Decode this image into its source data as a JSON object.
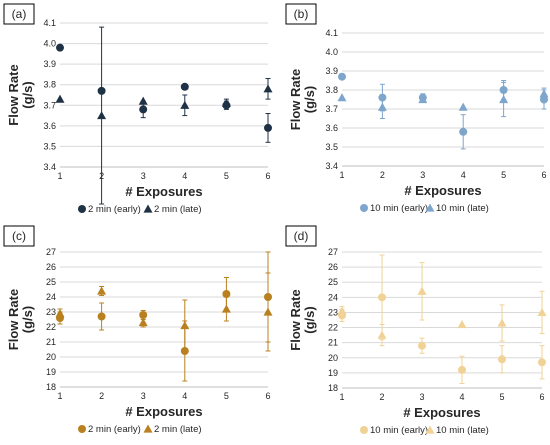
{
  "chart_data": [
    {
      "panel_label": "(a)",
      "type": "scatter",
      "xlabel": "# Exposures",
      "ylabel": "Flow Rate (g/s)",
      "ylabel_lines": [
        "Flow Rate",
        "(g/s)"
      ],
      "x": [
        1,
        2,
        3,
        4,
        5,
        6
      ],
      "xticks": [
        "1",
        "2",
        "3",
        "4",
        "5",
        "6"
      ],
      "ylim": [
        3.4,
        4.1
      ],
      "yticks": [
        "3.4",
        "3.5",
        "3.6",
        "3.7",
        "3.8",
        "3.9",
        "4.0",
        "4.1"
      ],
      "grid": "horizontal",
      "legend": "bottom",
      "series": [
        {
          "name": "2 min (early)",
          "marker": "circle",
          "color": "#1f3245",
          "values": [
            3.98,
            3.77,
            3.68,
            3.79,
            3.7,
            3.59
          ],
          "err": [
            0.0,
            0.0,
            0.04,
            0.0,
            0.02,
            0.07
          ]
        },
        {
          "name": "2 min (late)",
          "marker": "triangle",
          "color": "#1f3245",
          "values": [
            3.73,
            3.65,
            3.72,
            3.7,
            3.71,
            3.78
          ],
          "err": [
            0.0,
            0.43,
            0.0,
            0.05,
            0.02,
            0.05
          ]
        }
      ]
    },
    {
      "panel_label": "(b)",
      "type": "scatter",
      "xlabel": "# Exposures",
      "ylabel": "Flow Rate (g/s)",
      "ylabel_lines": [
        "Flow Rate",
        "(g/s)"
      ],
      "x": [
        1,
        2,
        3,
        4,
        5,
        6
      ],
      "xticks": [
        "1",
        "2",
        "3",
        "4",
        "5",
        "6"
      ],
      "ylim": [
        3.4,
        4.1
      ],
      "yticks": [
        "3.4",
        "3.5",
        "3.6",
        "3.7",
        "3.8",
        "3.9",
        "4.0",
        "4.1"
      ],
      "grid": "horizontal",
      "legend": "bottom",
      "series": [
        {
          "name": "10 min (early)",
          "marker": "circle",
          "color": "#7ea6cc",
          "values": [
            3.87,
            3.76,
            3.76,
            3.58,
            3.8,
            3.75
          ],
          "err": [
            0.0,
            0.07,
            0.02,
            0.09,
            0.05,
            0.05
          ]
        },
        {
          "name": "10 min (late)",
          "marker": "triangle",
          "color": "#7ea6cc",
          "values": [
            3.76,
            3.71,
            3.75,
            3.71,
            3.75,
            3.78
          ],
          "err": [
            0.0,
            0.06,
            0.01,
            0.0,
            0.09,
            0.03
          ]
        }
      ]
    },
    {
      "panel_label": "(c)",
      "type": "scatter",
      "xlabel": "# Exposures",
      "ylabel": "Flow Rate (g/s)",
      "ylabel_lines": [
        "Flow Rate",
        "(g/s)"
      ],
      "x": [
        1,
        2,
        3,
        4,
        5,
        6
      ],
      "xticks": [
        "1",
        "2",
        "3",
        "4",
        "5",
        "6"
      ],
      "ylim": [
        18,
        27
      ],
      "yticks": [
        "18",
        "19",
        "20",
        "21",
        "22",
        "23",
        "24",
        "25",
        "26",
        "27"
      ],
      "grid": "horizontal",
      "legend": "bottom",
      "series": [
        {
          "name": "2 min (early)",
          "marker": "circle",
          "color": "#b9801f",
          "values": [
            22.6,
            22.7,
            22.8,
            20.4,
            24.2,
            24.0
          ],
          "err": [
            0.4,
            0.9,
            0.3,
            2.0,
            1.1,
            3.0
          ]
        },
        {
          "name": "2 min (late)",
          "marker": "triangle",
          "color": "#b9801f",
          "values": [
            22.9,
            24.4,
            22.3,
            22.1,
            23.2,
            23.0
          ],
          "err": [
            0.3,
            0.3,
            0.3,
            1.7,
            0.8,
            2.6
          ]
        }
      ]
    },
    {
      "panel_label": "(d)",
      "type": "scatter",
      "xlabel": "# Exposures",
      "ylabel": "Flow Rate (g/s)",
      "ylabel_lines": [
        "Flow Rate",
        "(g/s)"
      ],
      "x": [
        1,
        2,
        3,
        4,
        5,
        6
      ],
      "xticks": [
        "1",
        "2",
        "3",
        "4",
        "5",
        "6"
      ],
      "ylim": [
        18,
        27
      ],
      "yticks": [
        "18",
        "19",
        "20",
        "21",
        "22",
        "23",
        "24",
        "25",
        "26",
        "27"
      ],
      "grid": "horizontal",
      "legend": "bottom",
      "series": [
        {
          "name": "10 min (early)",
          "marker": "circle",
          "color": "#f1d296",
          "values": [
            22.8,
            24.0,
            20.8,
            19.2,
            19.9,
            19.7
          ],
          "err": [
            0.4,
            2.8,
            0.5,
            0.9,
            0.9,
            1.1
          ]
        },
        {
          "name": "10 min (late)",
          "marker": "triangle",
          "color": "#f1d296",
          "values": [
            23.1,
            21.5,
            24.4,
            22.2,
            22.3,
            23.0
          ],
          "err": [
            0.3,
            0.7,
            1.9,
            0.0,
            1.2,
            1.4
          ]
        }
      ]
    }
  ]
}
